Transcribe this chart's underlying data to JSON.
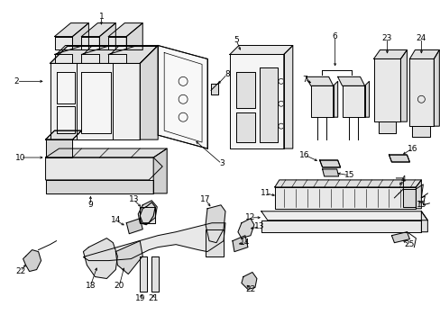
{
  "bg_color": "#ffffff",
  "line_color": "#000000",
  "figsize": [
    4.89,
    3.6
  ],
  "dpi": 100,
  "xlim": [
    0,
    489
  ],
  "ylim": [
    0,
    360
  ]
}
